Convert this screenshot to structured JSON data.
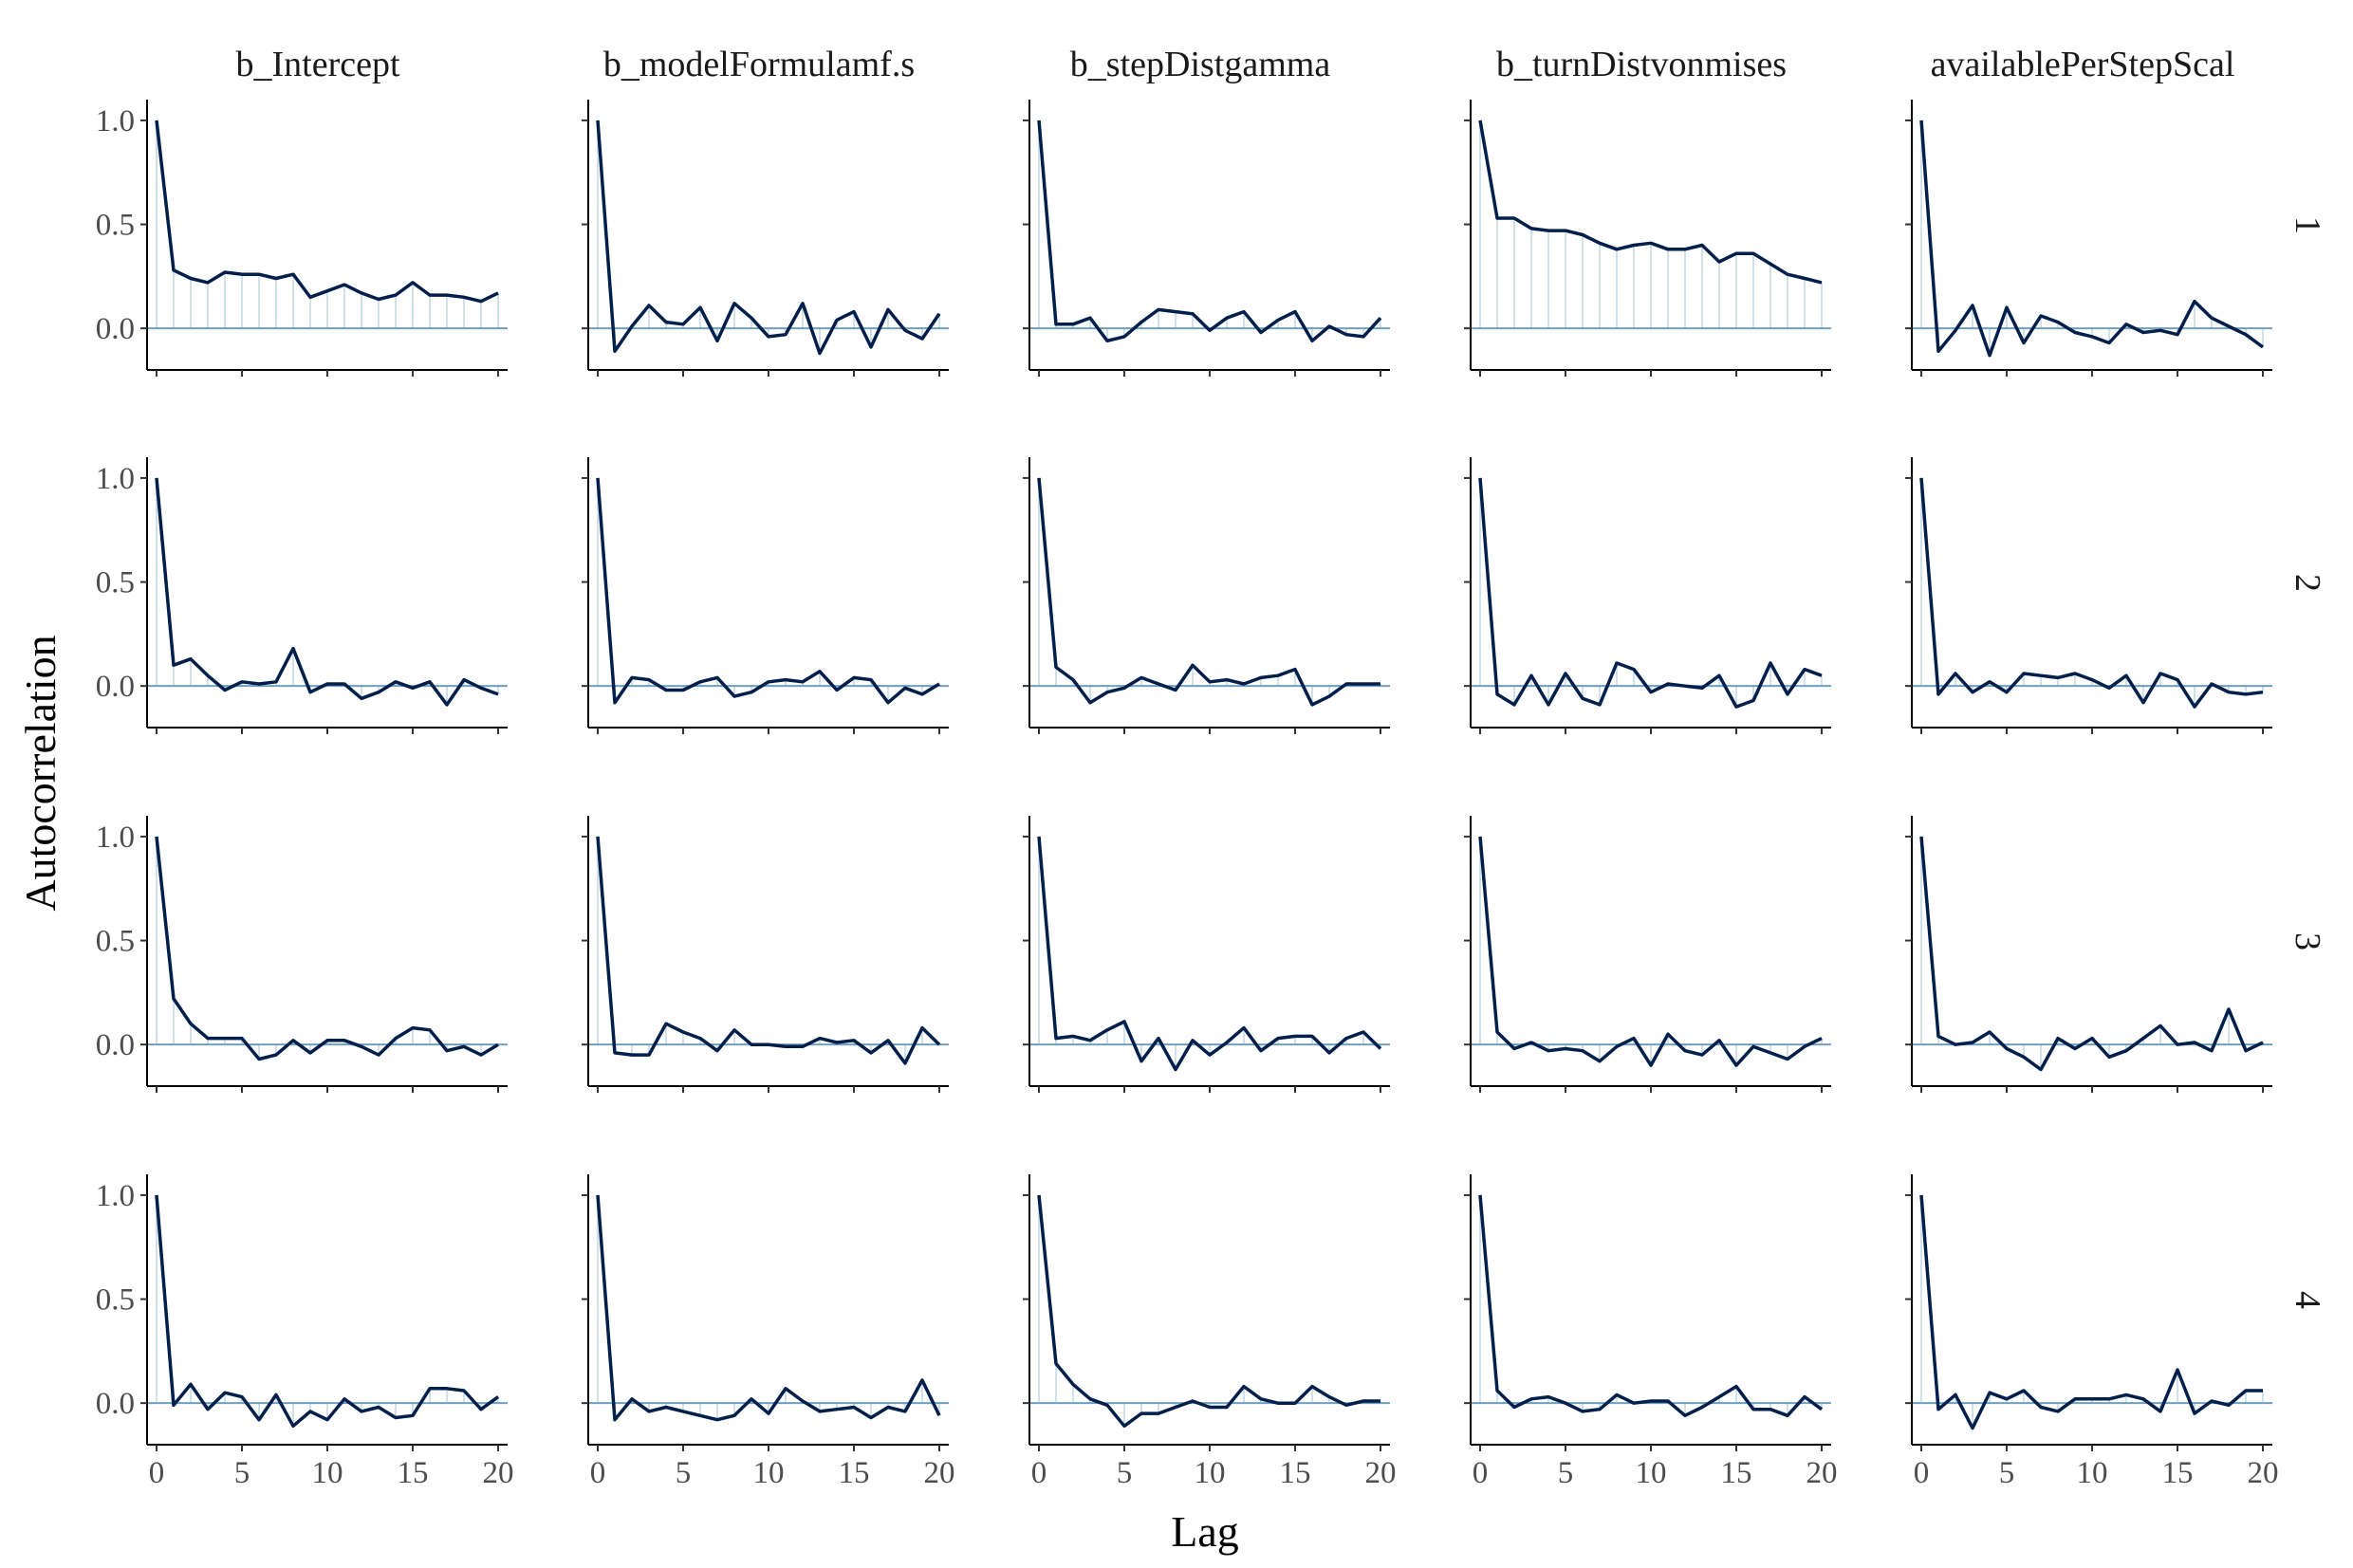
{
  "chart_data": {
    "type": "line",
    "facet_columns": [
      "b_Intercept",
      "b_modelFormulamf.ss",
      "b_stepDistgamma",
      "b_turnDistvonmises",
      "availablePerStepScale"
    ],
    "facet_columns_display": [
      "b_Intercept",
      "b_modelFormulamf.s",
      "b_stepDistgamma",
      "b_turnDistvonmises",
      "availablePerStepScal"
    ],
    "facet_rows": [
      "1",
      "2",
      "3",
      "4"
    ],
    "xlabel": "Lag",
    "ylabel": "Autocorrelation",
    "xlim": [
      0,
      20
    ],
    "ylim": [
      -0.2,
      1.1
    ],
    "x_ticks": [
      0,
      5,
      10,
      15,
      20
    ],
    "y_ticks": [
      0.0,
      0.5,
      1.0
    ],
    "y_tick_labels": [
      "0.0",
      "0.5",
      "1.0"
    ],
    "lags": [
      0,
      1,
      2,
      3,
      4,
      5,
      6,
      7,
      8,
      9,
      10,
      11,
      12,
      13,
      14,
      15,
      16,
      17,
      18,
      19,
      20
    ],
    "colors": {
      "line": "#011f4b",
      "bar": "#d1e1ec",
      "hline": "#6f9fbf"
    },
    "series": [
      {
        "chain": "1",
        "parameter": "b_Intercept",
        "values": [
          1.0,
          0.28,
          0.24,
          0.22,
          0.27,
          0.26,
          0.26,
          0.24,
          0.26,
          0.15,
          0.18,
          0.21,
          0.17,
          0.14,
          0.16,
          0.22,
          0.16,
          0.16,
          0.15,
          0.13,
          0.17
        ]
      },
      {
        "chain": "1",
        "parameter": "b_modelFormulamf.ss",
        "values": [
          1.0,
          -0.11,
          0.01,
          0.11,
          0.03,
          0.02,
          0.1,
          -0.06,
          0.12,
          0.05,
          -0.04,
          -0.03,
          0.12,
          -0.12,
          0.04,
          0.08,
          -0.09,
          0.09,
          -0.01,
          -0.05,
          0.07
        ]
      },
      {
        "chain": "1",
        "parameter": "b_stepDistgamma",
        "values": [
          1.0,
          0.02,
          0.02,
          0.05,
          -0.06,
          -0.04,
          0.03,
          0.09,
          0.08,
          0.07,
          -0.01,
          0.05,
          0.08,
          -0.02,
          0.04,
          0.08,
          -0.06,
          0.01,
          -0.03,
          -0.04,
          0.05
        ]
      },
      {
        "chain": "1",
        "parameter": "b_turnDistvonmises",
        "values": [
          1.0,
          0.53,
          0.53,
          0.48,
          0.47,
          0.47,
          0.45,
          0.41,
          0.38,
          0.4,
          0.41,
          0.38,
          0.38,
          0.4,
          0.32,
          0.36,
          0.36,
          0.31,
          0.26,
          0.24,
          0.22
        ]
      },
      {
        "chain": "1",
        "parameter": "availablePerStepScale",
        "values": [
          1.0,
          -0.11,
          -0.01,
          0.11,
          -0.13,
          0.1,
          -0.07,
          0.06,
          0.03,
          -0.02,
          -0.04,
          -0.07,
          0.02,
          -0.02,
          -0.01,
          -0.03,
          0.13,
          0.05,
          0.01,
          -0.03,
          -0.09
        ]
      },
      {
        "chain": "2",
        "parameter": "b_Intercept",
        "values": [
          1.0,
          0.1,
          0.13,
          0.05,
          -0.02,
          0.02,
          0.01,
          0.02,
          0.18,
          -0.03,
          0.01,
          0.01,
          -0.06,
          -0.03,
          0.02,
          -0.01,
          0.02,
          -0.09,
          0.03,
          -0.01,
          -0.04
        ]
      },
      {
        "chain": "2",
        "parameter": "b_modelFormulamf.ss",
        "values": [
          1.0,
          -0.08,
          0.04,
          0.03,
          -0.02,
          -0.02,
          0.02,
          0.04,
          -0.05,
          -0.03,
          0.02,
          0.03,
          0.02,
          0.07,
          -0.02,
          0.04,
          0.03,
          -0.08,
          -0.01,
          -0.04,
          0.01
        ]
      },
      {
        "chain": "2",
        "parameter": "b_stepDistgamma",
        "values": [
          1.0,
          0.09,
          0.03,
          -0.08,
          -0.03,
          -0.01,
          0.04,
          0.01,
          -0.02,
          0.1,
          0.02,
          0.03,
          0.01,
          0.04,
          0.05,
          0.08,
          -0.09,
          -0.05,
          0.01,
          0.01,
          0.01
        ]
      },
      {
        "chain": "2",
        "parameter": "b_turnDistvonmises",
        "values": [
          1.0,
          -0.04,
          -0.09,
          0.05,
          -0.09,
          0.06,
          -0.06,
          -0.09,
          0.11,
          0.08,
          -0.03,
          0.01,
          0.0,
          -0.01,
          0.05,
          -0.1,
          -0.07,
          0.11,
          -0.04,
          0.08,
          0.05
        ]
      },
      {
        "chain": "2",
        "parameter": "availablePerStepScale",
        "values": [
          1.0,
          -0.04,
          0.06,
          -0.03,
          0.02,
          -0.03,
          0.06,
          0.05,
          0.04,
          0.06,
          0.03,
          -0.01,
          0.05,
          -0.08,
          0.06,
          0.03,
          -0.1,
          0.01,
          -0.03,
          -0.04,
          -0.03
        ]
      },
      {
        "chain": "3",
        "parameter": "b_Intercept",
        "values": [
          1.0,
          0.22,
          0.1,
          0.03,
          0.03,
          0.03,
          -0.07,
          -0.05,
          0.02,
          -0.04,
          0.02,
          0.02,
          -0.01,
          -0.05,
          0.03,
          0.08,
          0.07,
          -0.03,
          -0.01,
          -0.05,
          0.0
        ]
      },
      {
        "chain": "3",
        "parameter": "b_modelFormulamf.ss",
        "values": [
          1.0,
          -0.04,
          -0.05,
          -0.05,
          0.1,
          0.06,
          0.03,
          -0.03,
          0.07,
          0.0,
          0.0,
          -0.01,
          -0.01,
          0.03,
          0.01,
          0.02,
          -0.04,
          0.02,
          -0.09,
          0.08,
          0.0
        ]
      },
      {
        "chain": "3",
        "parameter": "b_stepDistgamma",
        "values": [
          1.0,
          0.03,
          0.04,
          0.02,
          0.07,
          0.11,
          -0.08,
          0.03,
          -0.12,
          0.02,
          -0.05,
          0.01,
          0.08,
          -0.03,
          0.03,
          0.04,
          0.04,
          -0.04,
          0.03,
          0.06,
          -0.02
        ]
      },
      {
        "chain": "3",
        "parameter": "b_turnDistvonmises",
        "values": [
          1.0,
          0.06,
          -0.02,
          0.01,
          -0.03,
          -0.02,
          -0.03,
          -0.08,
          -0.01,
          0.03,
          -0.1,
          0.05,
          -0.03,
          -0.05,
          0.02,
          -0.1,
          -0.01,
          -0.04,
          -0.07,
          -0.01,
          0.03
        ]
      },
      {
        "chain": "3",
        "parameter": "availablePerStepScale",
        "values": [
          1.0,
          0.04,
          0.0,
          0.01,
          0.06,
          -0.02,
          -0.06,
          -0.12,
          0.03,
          -0.02,
          0.03,
          -0.06,
          -0.03,
          0.03,
          0.09,
          0.0,
          0.01,
          -0.03,
          0.17,
          -0.03,
          0.01
        ]
      },
      {
        "chain": "4",
        "parameter": "b_Intercept",
        "values": [
          1.0,
          -0.01,
          0.09,
          -0.03,
          0.05,
          0.03,
          -0.08,
          0.04,
          -0.11,
          -0.04,
          -0.08,
          0.02,
          -0.04,
          -0.02,
          -0.07,
          -0.06,
          0.07,
          0.07,
          0.06,
          -0.03,
          0.03
        ]
      },
      {
        "chain": "4",
        "parameter": "b_modelFormulamf.ss",
        "values": [
          1.0,
          -0.08,
          0.02,
          -0.04,
          -0.02,
          -0.04,
          -0.06,
          -0.08,
          -0.06,
          0.02,
          -0.05,
          0.07,
          0.01,
          -0.04,
          -0.03,
          -0.02,
          -0.07,
          -0.02,
          -0.04,
          0.11,
          -0.06
        ]
      },
      {
        "chain": "4",
        "parameter": "b_stepDistgamma",
        "values": [
          1.0,
          0.19,
          0.09,
          0.02,
          -0.01,
          -0.11,
          -0.05,
          -0.05,
          -0.02,
          0.01,
          -0.02,
          -0.02,
          0.08,
          0.02,
          0.0,
          0.0,
          0.08,
          0.03,
          -0.01,
          0.01,
          0.01
        ]
      },
      {
        "chain": "4",
        "parameter": "b_turnDistvonmises",
        "values": [
          1.0,
          0.06,
          -0.02,
          0.02,
          0.03,
          0.0,
          -0.04,
          -0.03,
          0.04,
          0.0,
          0.01,
          0.01,
          -0.06,
          -0.02,
          0.03,
          0.08,
          -0.03,
          -0.03,
          -0.06,
          0.03,
          -0.03
        ]
      },
      {
        "chain": "4",
        "parameter": "availablePerStepScale",
        "values": [
          1.0,
          -0.03,
          0.04,
          -0.12,
          0.05,
          0.02,
          0.06,
          -0.02,
          -0.04,
          0.02,
          0.02,
          0.02,
          0.04,
          0.02,
          -0.04,
          0.16,
          -0.05,
          0.01,
          -0.01,
          0.06,
          0.06
        ]
      }
    ]
  }
}
